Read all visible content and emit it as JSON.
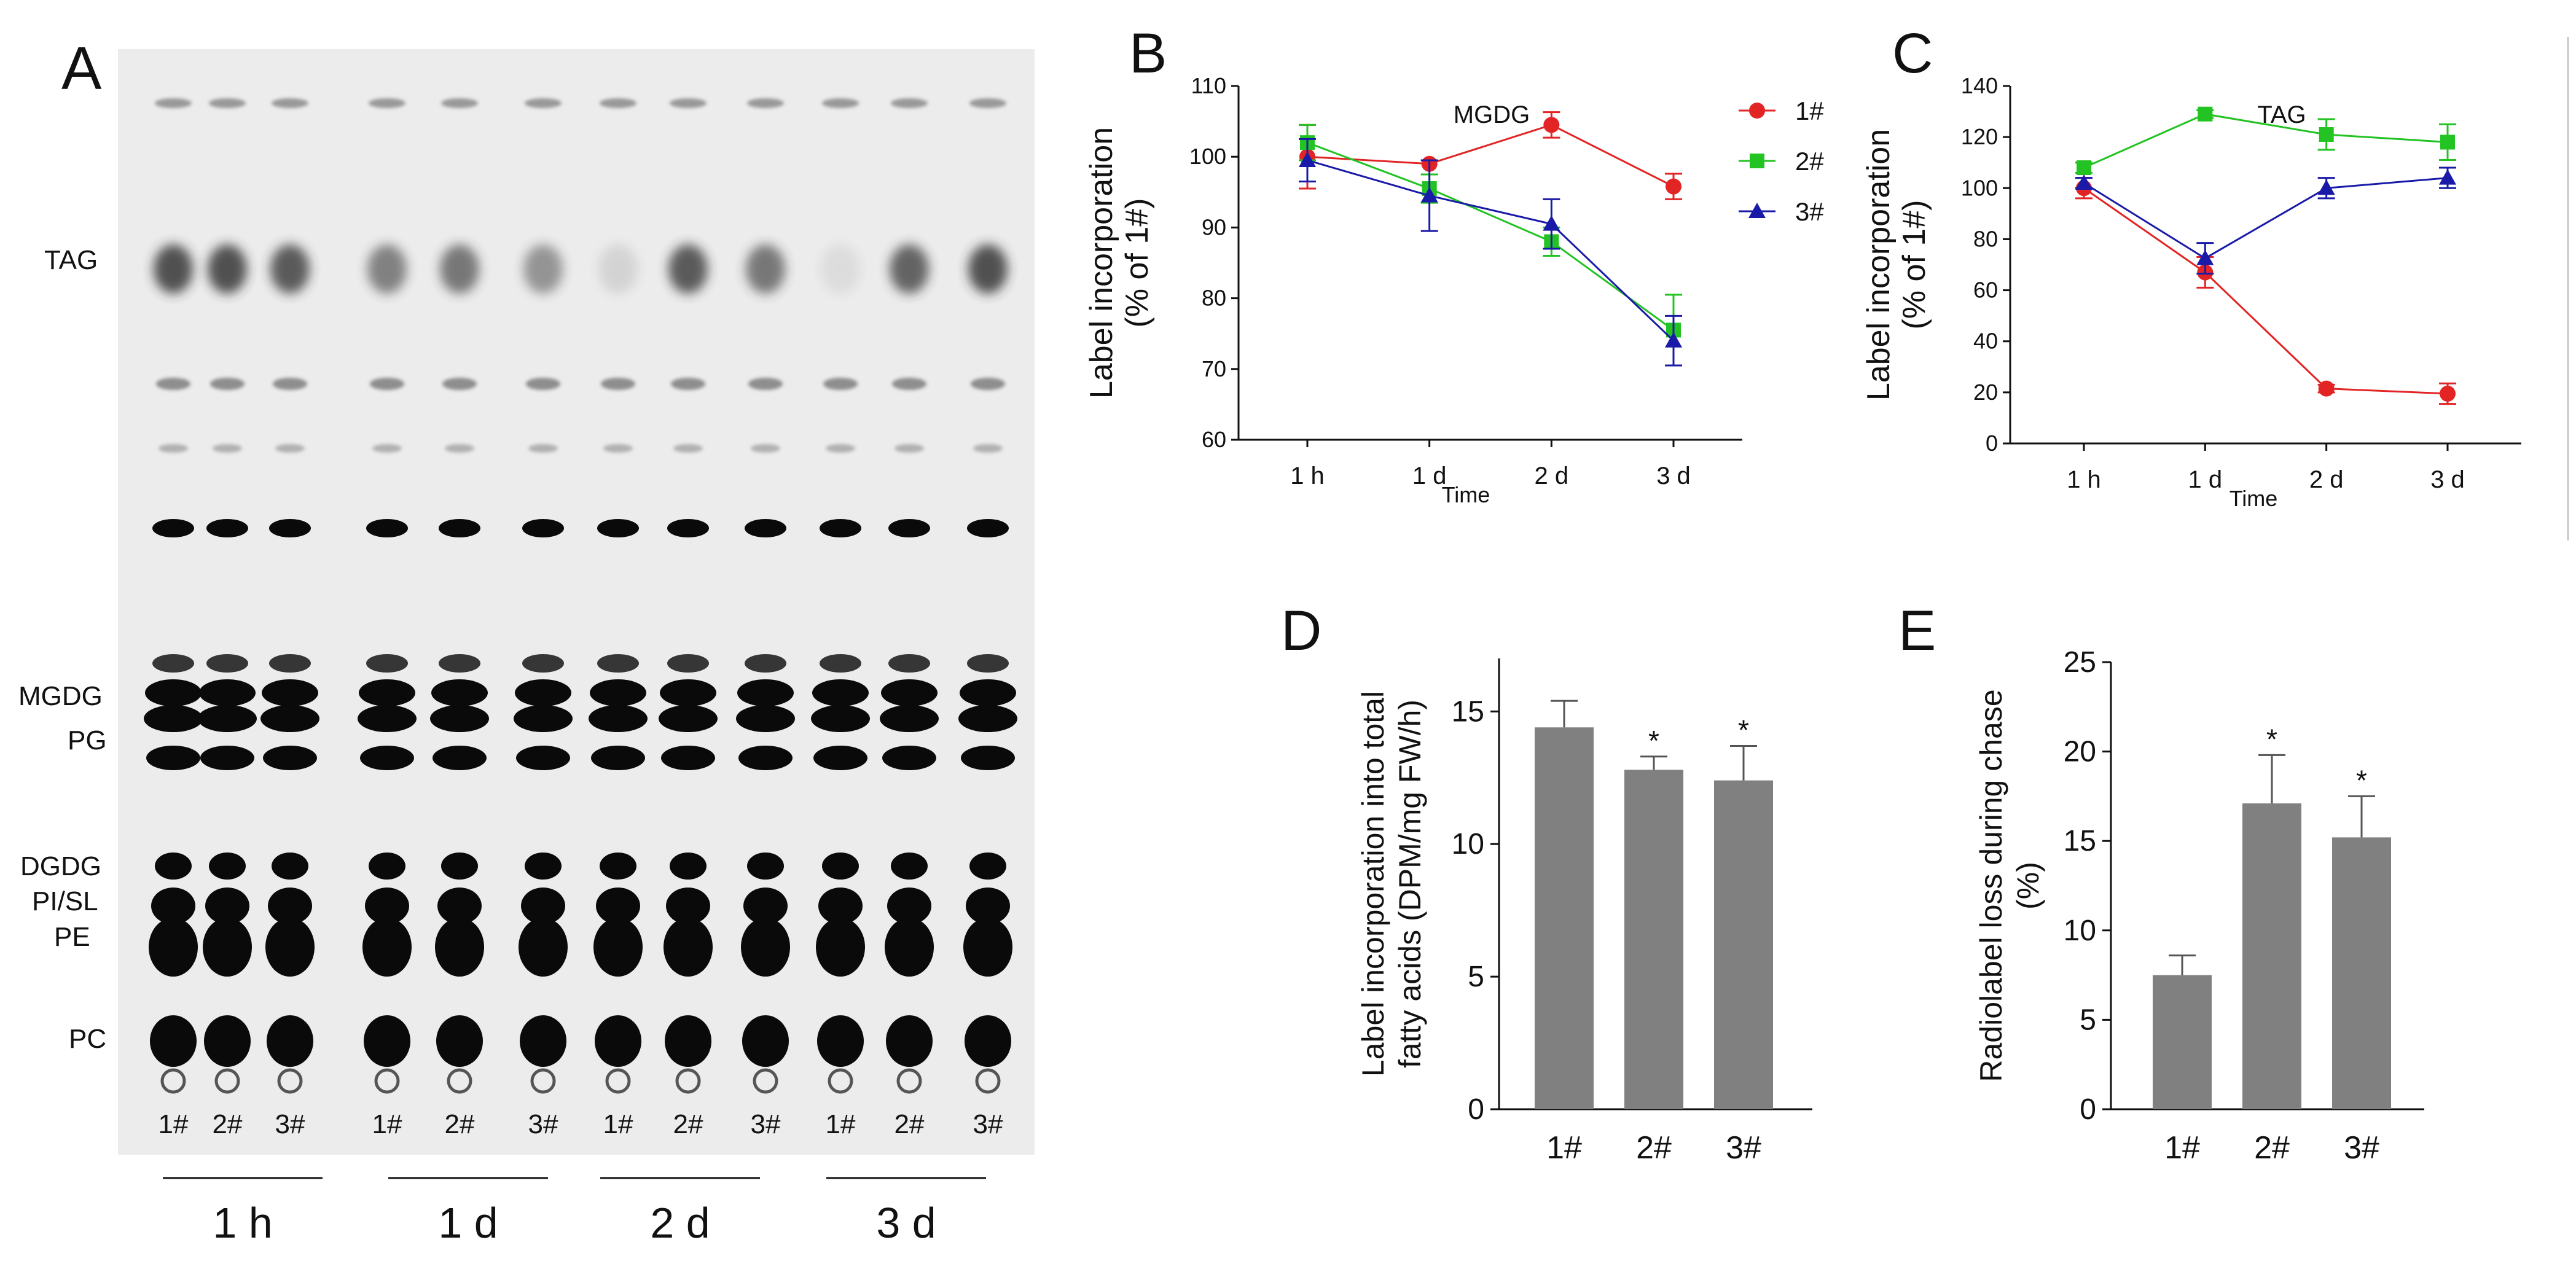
{
  "colors": {
    "s1": "#e32424",
    "s2": "#22c322",
    "s3": "#1a1aa8",
    "bar": "#808080",
    "gel_bg": "#ececec",
    "band": "#0a0a0a"
  },
  "panel_a": {
    "letter": "A",
    "lipid_labels": [
      "TAG",
      "MGDG",
      "PG",
      "DGDG",
      "PI/SL",
      "PE",
      "PC"
    ],
    "lane_labels": [
      "1#",
      "2#",
      "3#",
      "1#",
      "2#",
      "3#",
      "1#",
      "2#",
      "3#",
      "1#",
      "2#",
      "3#"
    ],
    "group_labels": [
      "1 h",
      "1 d",
      "2 d",
      "3 d"
    ],
    "bands": {
      "tag_intensity": [
        0.8,
        0.8,
        0.75,
        0.55,
        0.6,
        0.45,
        0.12,
        0.75,
        0.6,
        0.08,
        0.7,
        0.8
      ],
      "pc_intensity": [
        1,
        1,
        1,
        1,
        1,
        1,
        1,
        1,
        1,
        1,
        1,
        1
      ]
    }
  },
  "panel_b": {
    "letter": "B"
  },
  "panel_c": {
    "letter": "C"
  },
  "panel_d": {
    "letter": "D"
  },
  "panel_e": {
    "letter": "E"
  },
  "chart_data": [
    {
      "type": "line",
      "panel": "B",
      "title": "MGDG",
      "xlabel": "Time",
      "ylabel": [
        "Label incorporation",
        "(% of 1#)"
      ],
      "x": [
        "1 h",
        "1 d",
        "2 d",
        "3 d"
      ],
      "ylim": [
        60,
        110
      ],
      "yticks": [
        60,
        70,
        80,
        90,
        100,
        110
      ],
      "legend_position": "top-right",
      "series": [
        {
          "name": "1#",
          "marker": "circle",
          "color": "#e32424",
          "values": [
            100,
            99,
            104.5,
            95.8
          ],
          "errors": [
            4.5,
            0,
            1.8,
            1.8
          ]
        },
        {
          "name": "2#",
          "marker": "square",
          "color": "#22c322",
          "values": [
            102,
            95.5,
            88,
            75.5
          ],
          "errors": [
            2.5,
            2,
            2,
            5
          ]
        },
        {
          "name": "3#",
          "marker": "triangle",
          "color": "#1a1aa8",
          "values": [
            99.5,
            94.5,
            90.5,
            74
          ],
          "errors": [
            3,
            5,
            3.5,
            3.5
          ]
        }
      ]
    },
    {
      "type": "line",
      "panel": "C",
      "title": "TAG",
      "xlabel": "Time",
      "ylabel": [
        "Label incorporation",
        "(% of 1#)"
      ],
      "x": [
        "1 h",
        "1 d",
        "2 d",
        "3 d"
      ],
      "ylim": [
        0,
        140
      ],
      "yticks": [
        0,
        20,
        40,
        60,
        80,
        100,
        120,
        140
      ],
      "series": [
        {
          "name": "1#",
          "marker": "circle",
          "color": "#e32424",
          "values": [
            100,
            67,
            21.5,
            19.5
          ],
          "errors": [
            4,
            6,
            1.5,
            4
          ]
        },
        {
          "name": "2#",
          "marker": "square",
          "color": "#22c322",
          "values": [
            108,
            129,
            121,
            118
          ],
          "errors": [
            2,
            1.5,
            6,
            7
          ]
        },
        {
          "name": "3#",
          "marker": "triangle",
          "color": "#1a1aa8",
          "values": [
            102,
            72.5,
            100,
            104
          ],
          "errors": [
            2,
            6,
            4,
            4
          ]
        }
      ]
    },
    {
      "type": "bar",
      "panel": "D",
      "categories": [
        "1#",
        "2#",
        "3#"
      ],
      "ylabel": [
        "Label incorporation into total",
        "fatty acids (DPM/mg FW/h)"
      ],
      "ylim": [
        0,
        17
      ],
      "yticks": [
        0,
        5,
        10,
        15
      ],
      "values": [
        14.4,
        12.8,
        12.4
      ],
      "errors": [
        1.0,
        0.5,
        1.3
      ],
      "significance": [
        "",
        "*",
        "*"
      ]
    },
    {
      "type": "bar",
      "panel": "E",
      "categories": [
        "1#",
        "2#",
        "3#"
      ],
      "ylabel": [
        "Radiolabel loss during chase",
        "(%)"
      ],
      "ylim": [
        0,
        25
      ],
      "yticks": [
        0,
        5,
        10,
        15,
        20,
        25
      ],
      "values": [
        7.5,
        17.1,
        15.2
      ],
      "errors": [
        1.1,
        2.7,
        2.3
      ],
      "significance": [
        "",
        "*",
        "*"
      ]
    }
  ]
}
